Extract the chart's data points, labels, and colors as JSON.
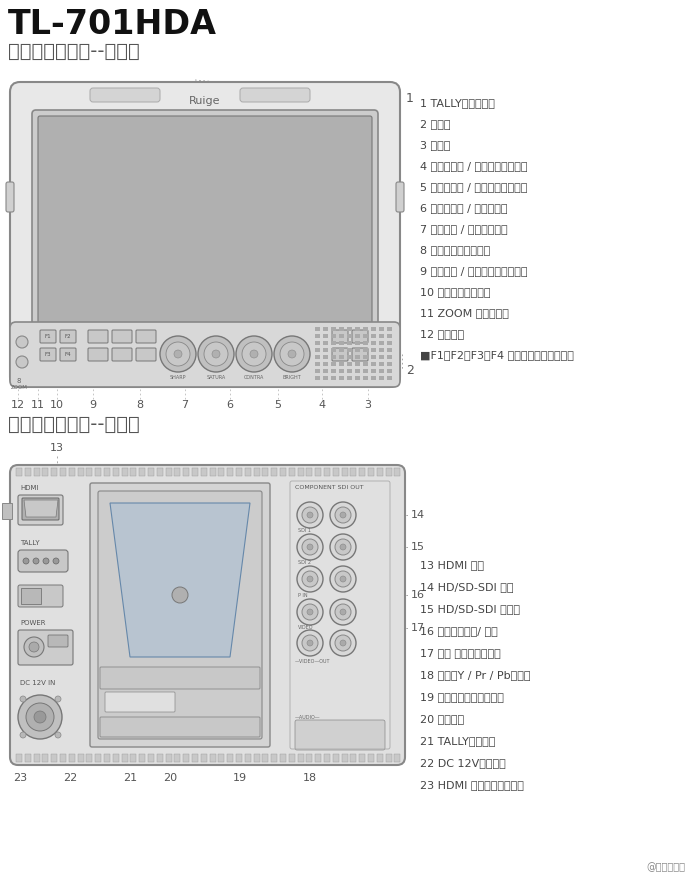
{
  "title": "TL-701HDA",
  "subtitle1": "功能设置示意图--正视图",
  "subtitle2": "功能设置示意图--后视图",
  "bg_color": "#ffffff",
  "front_labels_right": [
    "1 TALLY（提示灯）",
    "2 防护杆",
    "3 扬声器",
    "4 锐利度调节 / 图像点对点检查键",
    "5 饱和度调节 / 彩色、单色切换键",
    "6 对比度调节 / 音量调整键",
    "7 亮度调节 / 一键通切换键",
    "8 输入信号模式选择键",
    "9 状态锁定 / 解除键（一键返回）",
    "10 电源指示灯（红）",
    "11 ZOOM 控制器插孔",
    "12 耳机插孔",
    "■F1、F2、F3、F4 快捷键（用户自定义）"
  ],
  "front_labels_bottom": [
    "12",
    "11",
    "10",
    "9",
    "8",
    "7",
    "6",
    "5",
    "4",
    "3"
  ],
  "back_labels_right": [
    "13 HDMI 输入",
    "14 HD/SD-SDI 输出",
    "15 HD/SD-SDI 双输入",
    "16 复合视频输入/ 输出",
    "17 音频 输入（双声道）",
    "18 分量（Y / Pr / Pb）输入",
    "19 电池接口板（选购件）",
    "20 电源开关",
    "21 TALLY信号输入",
    "22 DC 12V电源输入",
    "23 HDMI 防脱锁（选购件）"
  ],
  "back_labels_bottom": [
    "23",
    "22",
    "21",
    "20",
    "19",
    "18"
  ],
  "watermark": "@影视工业网",
  "line_color": "#aaaaaa",
  "text_color": "#555555",
  "diagram_color": "#cccccc",
  "border_color": "#888888"
}
